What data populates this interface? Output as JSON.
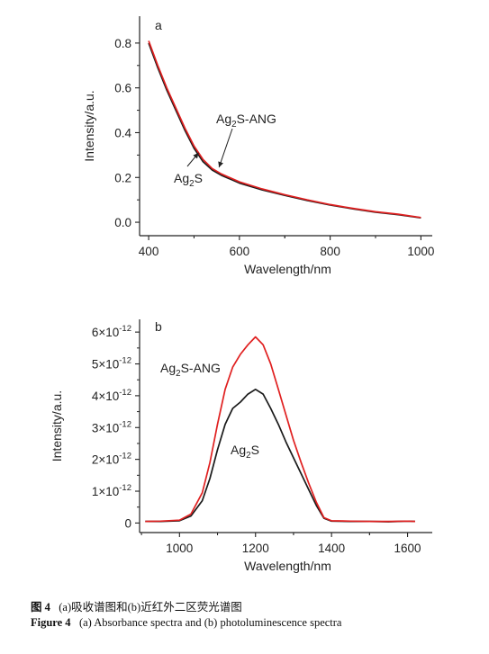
{
  "chart_data": [
    {
      "type": "line",
      "panel_label": "a",
      "xlabel": "Wavelength/nm",
      "ylabel": "Intensity/a.u.",
      "xlim": [
        380,
        1025
      ],
      "ylim": [
        -0.06,
        0.92
      ],
      "xticks": [
        400,
        600,
        800,
        1000
      ],
      "xtick_labels": [
        "400",
        "600",
        "800",
        "1000"
      ],
      "yticks": [
        0.0,
        0.2,
        0.4,
        0.6,
        0.8
      ],
      "ytick_labels": [
        "0.0",
        "0.2",
        "0.4",
        "0.6",
        "0.8"
      ],
      "grid": false,
      "series": [
        {
          "name": "Ag2S",
          "color": "#1a1a1a",
          "x": [
            400,
            420,
            440,
            460,
            480,
            500,
            520,
            540,
            560,
            600,
            650,
            700,
            750,
            800,
            850,
            900,
            950,
            1000
          ],
          "y": [
            0.8,
            0.69,
            0.59,
            0.5,
            0.41,
            0.33,
            0.27,
            0.233,
            0.21,
            0.175,
            0.145,
            0.12,
            0.097,
            0.077,
            0.06,
            0.045,
            0.034,
            0.02
          ]
        },
        {
          "name": "Ag2S-ANG",
          "color": "#e02020",
          "x": [
            400,
            420,
            440,
            460,
            480,
            500,
            520,
            540,
            560,
            600,
            650,
            700,
            750,
            800,
            850,
            900,
            950,
            1000
          ],
          "y": [
            0.81,
            0.7,
            0.6,
            0.51,
            0.42,
            0.34,
            0.28,
            0.24,
            0.216,
            0.18,
            0.149,
            0.123,
            0.1,
            0.079,
            0.062,
            0.047,
            0.036,
            0.021
          ]
        }
      ],
      "annotations": [
        {
          "text_main": "Ag",
          "text_sub": "2",
          "text_rest": "S-ANG",
          "arrow_to": [
            555,
            0.245
          ]
        },
        {
          "text_main": "Ag",
          "text_sub": "2",
          "text_rest": "S",
          "arrow_to": [
            510,
            0.31
          ]
        }
      ]
    },
    {
      "type": "line",
      "panel_label": "b",
      "xlabel": "Wavelength/nm",
      "ylabel": "Intensity/a.u.",
      "xlim": [
        895,
        1665
      ],
      "ylim": [
        -0.3,
        6.4
      ],
      "xticks": [
        1000,
        1200,
        1400,
        1600
      ],
      "xtick_labels": [
        "1000",
        "1200",
        "1400",
        "1600"
      ],
      "yticks": [
        0,
        1,
        2,
        3,
        4,
        5,
        6
      ],
      "ytick_labels": [
        {
          "mant": "0",
          "base": "",
          "exp": ""
        },
        {
          "mant": "1",
          "base": "×10",
          "exp": "-12"
        },
        {
          "mant": "2",
          "base": "×10",
          "exp": "-12"
        },
        {
          "mant": "3",
          "base": "×10",
          "exp": "-12"
        },
        {
          "mant": "4",
          "base": "×10",
          "exp": "-12"
        },
        {
          "mant": "5",
          "base": "×10",
          "exp": "-12"
        },
        {
          "mant": "6",
          "base": "×10",
          "exp": "-12"
        }
      ],
      "grid": false,
      "series": [
        {
          "name": "Ag2S",
          "color": "#1a1a1a",
          "x": [
            910,
            950,
            1000,
            1030,
            1060,
            1080,
            1100,
            1120,
            1140,
            1160,
            1180,
            1200,
            1220,
            1240,
            1260,
            1280,
            1300,
            1320,
            1340,
            1360,
            1380,
            1400,
            1450,
            1500,
            1550,
            1600,
            1620
          ],
          "y": [
            0.05,
            0.05,
            0.07,
            0.22,
            0.7,
            1.4,
            2.3,
            3.1,
            3.6,
            3.8,
            4.05,
            4.2,
            4.05,
            3.6,
            3.1,
            2.55,
            2.05,
            1.55,
            1.05,
            0.55,
            0.15,
            0.06,
            0.05,
            0.05,
            0.04,
            0.06,
            0.05
          ]
        },
        {
          "name": "Ag2S-ANG",
          "color": "#e02020",
          "x": [
            910,
            950,
            1000,
            1030,
            1060,
            1080,
            1100,
            1120,
            1140,
            1160,
            1180,
            1200,
            1220,
            1240,
            1260,
            1280,
            1300,
            1320,
            1340,
            1360,
            1380,
            1400,
            1450,
            1500,
            1550,
            1600,
            1620
          ],
          "y": [
            0.05,
            0.06,
            0.09,
            0.28,
            0.95,
            1.9,
            3.1,
            4.2,
            4.9,
            5.3,
            5.6,
            5.85,
            5.6,
            5.0,
            4.2,
            3.4,
            2.6,
            1.9,
            1.25,
            0.65,
            0.17,
            0.07,
            0.06,
            0.05,
            0.05,
            0.06,
            0.05
          ]
        }
      ],
      "annotations": [
        {
          "text_main": "Ag",
          "text_sub": "2",
          "text_rest": "S-ANG",
          "at": [
            1090,
            4.9
          ]
        },
        {
          "text_main": "Ag",
          "text_sub": "2",
          "text_rest": "S",
          "at": [
            1165,
            2.15
          ]
        }
      ]
    }
  ],
  "caption": {
    "cn_label": "图 4",
    "cn_text": "(a)吸收谱图和(b)近红外二区荧光谱图",
    "en_label": "Figure 4",
    "en_text": "(a) Absorbance spectra and (b) photoluminescence spectra"
  }
}
